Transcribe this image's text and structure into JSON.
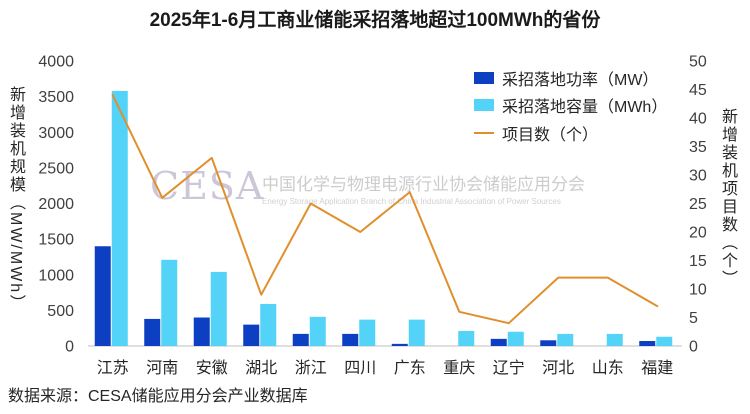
{
  "chart_data": {
    "type": "bar",
    "title": "2025年1-6月工商业储能采招落地超过100MWh的省份",
    "categories": [
      "江苏",
      "河南",
      "安徽",
      "湖北",
      "浙江",
      "四川",
      "广东",
      "重庆",
      "辽宁",
      "河北",
      "山东",
      "福建"
    ],
    "series": [
      {
        "name": "采招落地功率（MW）",
        "type": "bar",
        "y_axis": "left",
        "color": "#0d3fc2",
        "values": [
          1400,
          380,
          400,
          300,
          170,
          170,
          30,
          0,
          100,
          80,
          0,
          70
        ]
      },
      {
        "name": "采招落地容量（MWh）",
        "type": "bar",
        "y_axis": "left",
        "color": "#52d3f7",
        "values": [
          3580,
          1210,
          1040,
          590,
          410,
          370,
          370,
          210,
          200,
          170,
          170,
          130
        ]
      },
      {
        "name": "项目数（个）",
        "type": "line",
        "y_axis": "right",
        "color": "#e08f2d",
        "values": [
          44,
          26,
          33,
          9,
          25,
          20,
          27,
          6,
          4,
          12,
          12,
          7
        ]
      }
    ],
    "xlabel": "",
    "ylabel": "新增装机规模（MW/MWh）",
    "y2label": "新增装机项目数（个）",
    "ylim": [
      0,
      4000
    ],
    "y2lim": [
      0,
      50
    ],
    "yticks": [
      0,
      500,
      1000,
      1500,
      2000,
      2500,
      3000,
      3500,
      4000
    ],
    "y2ticks": [
      0,
      5,
      10,
      15,
      20,
      25,
      30,
      35,
      40,
      45,
      50
    ],
    "grid": false,
    "legend": "top-right"
  },
  "watermark": {
    "logo": "CESA",
    "org_cn": "中国化学与物理电源行业协会储能应用分会",
    "org_en": "Energy Storage Application Branch of China Industrial Association of Power Sources"
  },
  "source": "数据来源：CESA储能应用分会产业数据库"
}
